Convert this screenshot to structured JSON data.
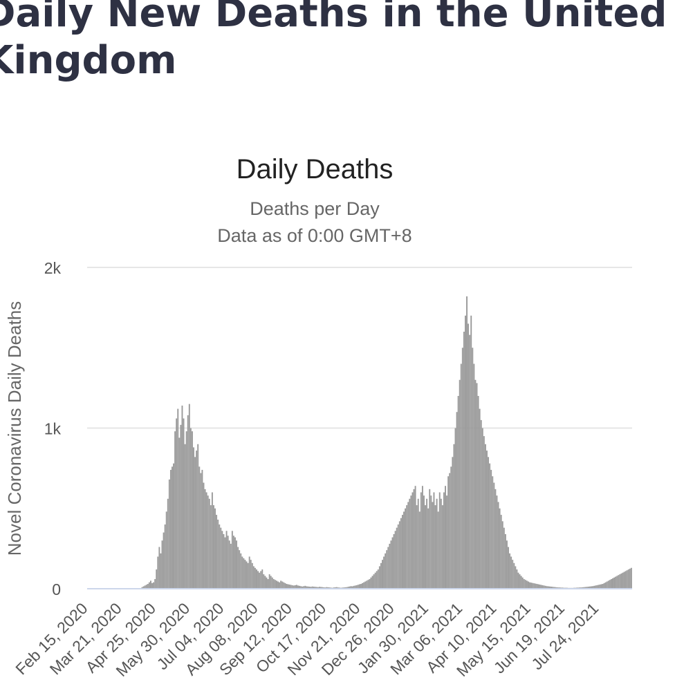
{
  "page": {
    "heading": "Daily New Deaths in the United Kingdom"
  },
  "chart_data": {
    "type": "bar",
    "title": "Daily Deaths",
    "subtitle": [
      "Deaths per Day",
      "Data as of 0:00 GMT+8"
    ],
    "ylabel": "Novel Coronavirus Daily Deaths",
    "ylim": [
      0,
      2000
    ],
    "y_ticks": [
      {
        "value": 0,
        "label": "0"
      },
      {
        "value": 1000,
        "label": "1k"
      },
      {
        "value": 2000,
        "label": "2k"
      }
    ],
    "x_tick_labels": [
      "Feb 15, 2020",
      "Mar 21, 2020",
      "Apr 25, 2020",
      "May 30, 2020",
      "Jul 04, 2020",
      "Aug 08, 2020",
      "Sep 12, 2020",
      "Oct 17, 2020",
      "Nov 21, 2020",
      "Dec 26, 2020",
      "Jan 30, 2021",
      "Mar 06, 2021",
      "Apr 10, 2021",
      "May 15, 2021",
      "Jun 19, 2021",
      "Jul 24, 2021"
    ],
    "x_start_date": "Feb 15, 2020",
    "interval_days": 35,
    "bar_color": "#999999",
    "grid_color": "#e6e6e6",
    "grid": true,
    "legend": false,
    "series": [
      {
        "values": [
          0,
          0,
          0,
          0,
          0,
          0,
          0,
          0,
          0,
          0,
          0,
          0,
          0,
          0,
          0,
          0,
          0,
          0,
          0,
          0,
          0,
          0,
          0,
          0,
          0,
          0,
          0,
          0,
          0,
          0,
          0,
          0,
          0,
          0,
          0,
          0,
          0,
          0,
          10,
          15,
          20,
          25,
          30,
          40,
          50,
          35,
          40,
          60,
          120,
          200,
          260,
          220,
          300,
          350,
          400,
          480,
          560,
          680,
          740,
          760,
          780,
          980,
          1060,
          1120,
          940,
          1020,
          1140,
          1060,
          900,
          980,
          1080,
          1150,
          1000,
          980,
          880,
          820,
          860,
          900,
          760,
          720,
          740,
          660,
          620,
          600,
          580,
          560,
          520,
          600,
          520,
          500,
          460,
          430,
          400,
          380,
          360,
          340,
          320,
          360,
          330,
          300,
          280,
          360,
          330,
          320,
          300,
          260,
          240,
          220,
          200,
          190,
          180,
          170,
          160,
          200,
          180,
          160,
          140,
          130,
          120,
          110,
          100,
          110,
          120,
          90,
          80,
          70,
          60,
          90,
          80,
          70,
          60,
          55,
          50,
          45,
          40,
          50,
          45,
          40,
          35,
          30,
          28,
          26,
          24,
          22,
          20,
          22,
          24,
          20,
          18,
          16,
          14,
          16,
          18,
          15,
          14,
          13,
          12,
          14,
          13,
          12,
          11,
          10,
          12,
          11,
          10,
          9,
          8,
          10,
          9,
          8,
          7,
          6,
          8,
          9,
          10,
          8,
          7,
          6,
          7,
          8,
          9,
          10,
          12,
          14,
          16,
          15,
          18,
          20,
          22,
          25,
          28,
          30,
          35,
          40,
          45,
          50,
          55,
          60,
          70,
          80,
          90,
          100,
          110,
          120,
          140,
          160,
          180,
          200,
          220,
          240,
          260,
          280,
          300,
          320,
          340,
          360,
          380,
          400,
          420,
          440,
          460,
          480,
          500,
          520,
          540,
          560,
          580,
          600,
          620,
          640,
          520,
          560,
          480,
          600,
          640,
          580,
          520,
          560,
          500,
          620,
          580,
          540,
          600,
          520,
          560,
          480,
          600,
          560,
          520,
          600,
          640,
          580,
          700,
          720,
          760,
          820,
          900,
          1000,
          1100,
          1200,
          1300,
          1400,
          1500,
          1600,
          1700,
          1820,
          1650,
          1580,
          1700,
          1500,
          1400,
          1300,
          1280,
          1200,
          1120,
          1050,
          1000,
          950,
          900,
          860,
          820,
          780,
          740,
          700,
          660,
          620,
          580,
          540,
          500,
          460,
          420,
          380,
          340,
          300,
          260,
          220,
          200,
          180,
          160,
          140,
          120,
          100,
          90,
          80,
          70,
          60,
          55,
          50,
          45,
          40,
          38,
          36,
          34,
          32,
          30,
          28,
          26,
          24,
          22,
          20,
          18,
          16,
          15,
          14,
          13,
          12,
          11,
          10,
          9,
          8,
          8,
          7,
          7,
          6,
          6,
          6,
          5,
          5,
          5,
          5,
          6,
          6,
          7,
          7,
          8,
          8,
          9,
          10,
          11,
          12,
          13,
          14,
          15,
          16,
          18,
          20,
          22,
          24,
          26,
          28,
          30,
          35,
          40,
          45,
          50,
          55,
          60,
          65,
          70,
          75,
          80,
          85,
          90,
          95,
          100,
          105,
          110,
          115,
          120,
          125,
          130
        ]
      }
    ]
  }
}
